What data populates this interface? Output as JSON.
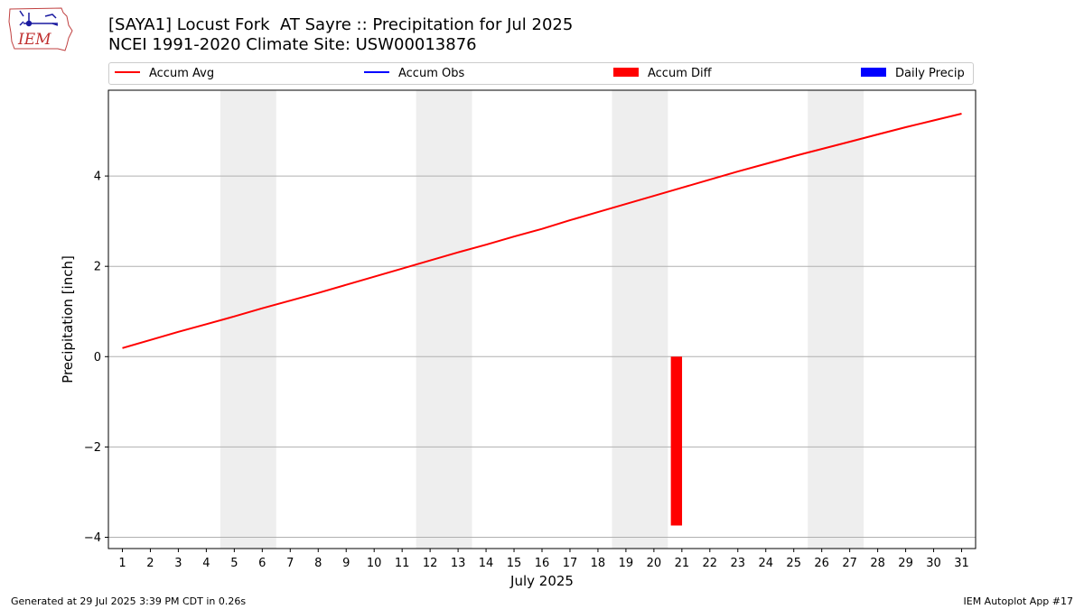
{
  "header": {
    "title_line1": "[SAYA1] Locust Fork  AT Sayre :: Precipitation for Jul 2025",
    "title_line2": "NCEI 1991-2020 Climate Site: USW00013876",
    "logo_text": "IEM"
  },
  "legend": [
    {
      "label": "Accum Avg",
      "color": "#ff0000",
      "kind": "line"
    },
    {
      "label": "Accum Obs",
      "color": "#0000ff",
      "kind": "line"
    },
    {
      "label": "Accum Diff",
      "color": "#ff0000",
      "kind": "box"
    },
    {
      "label": "Daily Precip",
      "color": "#0000ff",
      "kind": "box"
    }
  ],
  "footer": {
    "left": "Generated at 29 Jul 2025 3:39 PM CDT in 0.26s",
    "right": "IEM Autoplot App #17"
  },
  "chart_data": {
    "type": "line",
    "xlabel": "July 2025",
    "ylabel": "Precipitation [inch]",
    "x": [
      1,
      2,
      3,
      4,
      5,
      6,
      7,
      8,
      9,
      10,
      11,
      12,
      13,
      14,
      15,
      16,
      17,
      18,
      19,
      20,
      21,
      22,
      23,
      24,
      25,
      26,
      27,
      28,
      29,
      30,
      31
    ],
    "xlim": [
      0.5,
      31.5
    ],
    "ylim": [
      -4.25,
      5.9
    ],
    "yticks": [
      -4,
      -2,
      0,
      2,
      4
    ],
    "ytick_labels": [
      "−4",
      "−2",
      "0",
      "2",
      "4"
    ],
    "grid_y": true,
    "weekend_shading": [
      [
        4.5,
        6.5
      ],
      [
        11.5,
        13.5
      ],
      [
        18.5,
        20.5
      ],
      [
        25.5,
        27.5
      ]
    ],
    "weekend_color": "#eeeeee",
    "series": [
      {
        "name": "Accum Avg",
        "color": "#ff0000",
        "values": [
          0.19,
          0.37,
          0.55,
          0.72,
          0.89,
          1.07,
          1.24,
          1.41,
          1.59,
          1.77,
          1.95,
          2.13,
          2.31,
          2.48,
          2.66,
          2.83,
          3.02,
          3.2,
          3.38,
          3.56,
          3.74,
          3.92,
          4.1,
          4.27,
          4.44,
          4.6,
          4.76,
          4.92,
          5.08,
          5.23,
          5.38
        ]
      }
    ],
    "bars": [
      {
        "name": "Accum Diff",
        "color": "#ff0000",
        "x": 21,
        "value": -3.74
      }
    ]
  }
}
